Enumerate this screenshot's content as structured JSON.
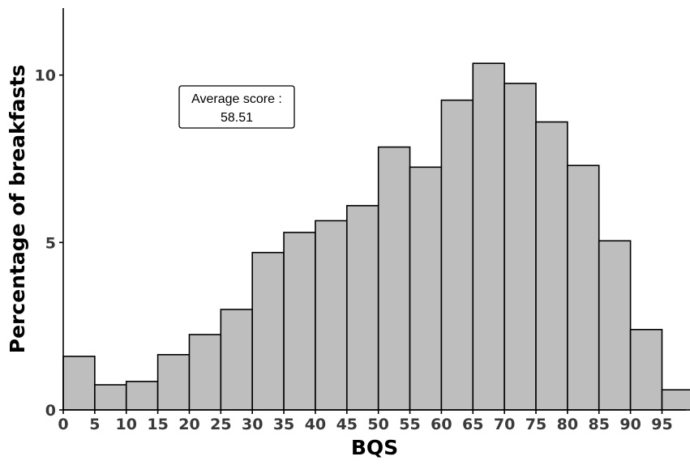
{
  "chart_data": {
    "type": "bar",
    "xlabel": "BQS",
    "ylabel": "Percentage of breakfasts",
    "x_ticks": [
      "0",
      "5",
      "10",
      "15",
      "20",
      "25",
      "30",
      "35",
      "40",
      "45",
      "50",
      "55",
      "60",
      "65",
      "70",
      "75",
      "80",
      "85",
      "90",
      "95"
    ],
    "y_ticks": [
      "0",
      "5",
      "10"
    ],
    "bin_width": 5,
    "bins": [
      0,
      5,
      10,
      15,
      20,
      25,
      30,
      35,
      40,
      45,
      50,
      55,
      60,
      65,
      70,
      75,
      80,
      85,
      90,
      95
    ],
    "values": [
      1.6,
      0.75,
      0.85,
      1.65,
      2.25,
      3.0,
      4.7,
      5.3,
      5.65,
      6.1,
      7.85,
      7.25,
      9.25,
      10.35,
      9.75,
      8.6,
      7.3,
      5.05,
      2.4,
      0.6
    ],
    "xlim": [
      0,
      98.8
    ],
    "ylim": [
      0,
      12
    ],
    "grid": false,
    "bar_color": "#bebebe",
    "annotation": {
      "line1": "Average score :",
      "line2": "58.51"
    }
  }
}
